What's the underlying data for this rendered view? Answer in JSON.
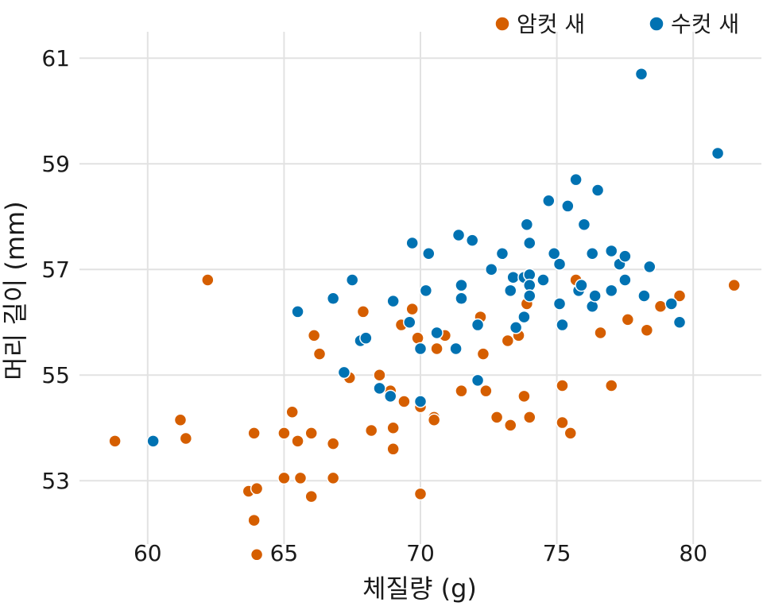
{
  "chart_data": {
    "type": "scatter",
    "xlabel": "체질량 (g)",
    "ylabel": "머리 길이 (mm)",
    "xlim": [
      57.5,
      82.5
    ],
    "ylim": [
      51.8,
      61.5
    ],
    "xticks": [
      60,
      65,
      70,
      75,
      80
    ],
    "yticks": [
      53,
      55,
      57,
      59,
      61
    ],
    "grid": true,
    "legend_position": "top-right",
    "series": [
      {
        "name": "암컷 새",
        "color": "#d55e00",
        "points": [
          [
            58.8,
            53.75
          ],
          [
            61.2,
            54.15
          ],
          [
            61.4,
            53.8
          ],
          [
            62.2,
            56.8
          ],
          [
            63.7,
            52.8
          ],
          [
            63.9,
            53.9
          ],
          [
            63.9,
            52.25
          ],
          [
            64.0,
            52.85
          ],
          [
            64.0,
            51.6
          ],
          [
            65.0,
            53.9
          ],
          [
            65.0,
            53.05
          ],
          [
            65.3,
            54.3
          ],
          [
            65.5,
            53.75
          ],
          [
            65.6,
            53.05
          ],
          [
            66.0,
            53.9
          ],
          [
            66.0,
            52.7
          ],
          [
            66.1,
            55.75
          ],
          [
            66.3,
            55.4
          ],
          [
            66.8,
            53.7
          ],
          [
            66.8,
            53.05
          ],
          [
            67.4,
            54.95
          ],
          [
            67.9,
            56.2
          ],
          [
            68.2,
            53.95
          ],
          [
            68.5,
            55.0
          ],
          [
            68.9,
            54.7
          ],
          [
            69.0,
            54.0
          ],
          [
            69.0,
            53.6
          ],
          [
            69.3,
            55.95
          ],
          [
            69.4,
            54.5
          ],
          [
            69.7,
            56.25
          ],
          [
            69.9,
            55.7
          ],
          [
            70.0,
            54.4
          ],
          [
            70.0,
            52.75
          ],
          [
            70.5,
            54.2
          ],
          [
            70.5,
            54.15
          ],
          [
            70.6,
            55.5
          ],
          [
            70.9,
            55.75
          ],
          [
            71.5,
            54.7
          ],
          [
            72.2,
            56.1
          ],
          [
            72.3,
            55.4
          ],
          [
            72.4,
            54.7
          ],
          [
            72.8,
            54.2
          ],
          [
            73.2,
            55.65
          ],
          [
            73.3,
            54.05
          ],
          [
            73.6,
            55.75
          ],
          [
            73.8,
            54.6
          ],
          [
            73.9,
            56.35
          ],
          [
            74.0,
            54.2
          ],
          [
            75.2,
            54.8
          ],
          [
            75.2,
            54.1
          ],
          [
            75.5,
            53.9
          ],
          [
            75.7,
            56.8
          ],
          [
            76.6,
            55.8
          ],
          [
            77.0,
            54.8
          ],
          [
            77.6,
            56.05
          ],
          [
            78.3,
            55.85
          ],
          [
            78.8,
            56.3
          ],
          [
            79.5,
            56.5
          ],
          [
            81.5,
            56.7
          ]
        ]
      },
      {
        "name": "수컷 새",
        "color": "#0072b2",
        "points": [
          [
            60.2,
            53.75
          ],
          [
            65.5,
            56.2
          ],
          [
            66.8,
            56.45
          ],
          [
            67.2,
            55.05
          ],
          [
            67.5,
            56.8
          ],
          [
            67.8,
            55.65
          ],
          [
            68.0,
            55.7
          ],
          [
            68.5,
            54.75
          ],
          [
            68.9,
            54.6
          ],
          [
            69.0,
            56.4
          ],
          [
            69.6,
            56.0
          ],
          [
            69.7,
            57.5
          ],
          [
            70.0,
            55.5
          ],
          [
            70.0,
            54.5
          ],
          [
            70.2,
            56.6
          ],
          [
            70.3,
            57.3
          ],
          [
            70.6,
            55.8
          ],
          [
            71.3,
            55.5
          ],
          [
            71.4,
            57.65
          ],
          [
            71.5,
            56.7
          ],
          [
            71.5,
            56.45
          ],
          [
            71.9,
            57.55
          ],
          [
            72.1,
            55.95
          ],
          [
            72.1,
            54.9
          ],
          [
            72.6,
            57.0
          ],
          [
            73.0,
            57.3
          ],
          [
            73.3,
            56.6
          ],
          [
            73.4,
            56.85
          ],
          [
            73.5,
            55.9
          ],
          [
            73.8,
            56.85
          ],
          [
            73.8,
            56.1
          ],
          [
            73.9,
            57.85
          ],
          [
            74.0,
            57.5
          ],
          [
            74.0,
            56.9
          ],
          [
            74.0,
            56.7
          ],
          [
            74.0,
            56.5
          ],
          [
            74.5,
            56.8
          ],
          [
            74.7,
            58.3
          ],
          [
            74.9,
            57.3
          ],
          [
            75.1,
            57.1
          ],
          [
            75.1,
            56.35
          ],
          [
            75.2,
            55.95
          ],
          [
            75.4,
            58.2
          ],
          [
            75.7,
            58.7
          ],
          [
            75.8,
            56.6
          ],
          [
            75.9,
            56.7
          ],
          [
            76.0,
            57.85
          ],
          [
            76.3,
            57.3
          ],
          [
            76.3,
            56.3
          ],
          [
            76.4,
            56.5
          ],
          [
            76.5,
            58.5
          ],
          [
            77.0,
            57.35
          ],
          [
            77.0,
            56.6
          ],
          [
            77.3,
            57.1
          ],
          [
            77.5,
            57.25
          ],
          [
            77.5,
            56.8
          ],
          [
            78.1,
            60.7
          ],
          [
            78.2,
            56.5
          ],
          [
            78.4,
            57.05
          ],
          [
            79.2,
            56.35
          ],
          [
            79.5,
            56.0
          ],
          [
            80.9,
            59.2
          ]
        ]
      }
    ]
  }
}
